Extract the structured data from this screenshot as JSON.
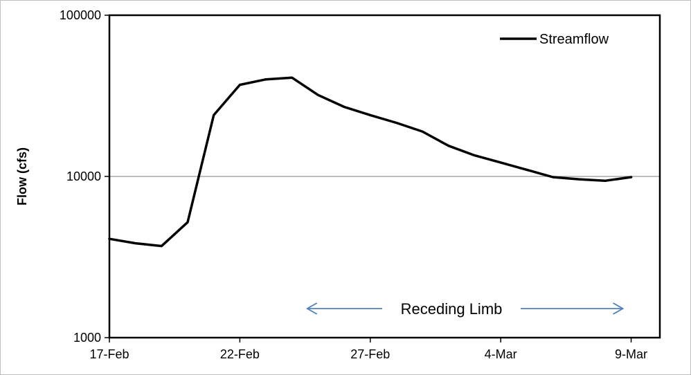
{
  "chart_data": {
    "type": "line",
    "title": "",
    "xlabel": "",
    "ylabel": "Flow (cfs)",
    "yscale": "log",
    "ylim": [
      1000,
      100000
    ],
    "xlim": [
      "17-Feb",
      "9-Mar"
    ],
    "y_ticks": [
      {
        "value": 1000,
        "label": "1000"
      },
      {
        "value": 10000,
        "label": "10000"
      },
      {
        "value": 100000,
        "label": "100000"
      }
    ],
    "x_ticks": [
      {
        "value": "17-Feb",
        "label": "17-Feb"
      },
      {
        "value": "22-Feb",
        "label": "22-Feb"
      },
      {
        "value": "27-Feb",
        "label": "27-Feb"
      },
      {
        "value": "4-Mar",
        "label": "4-Mar"
      },
      {
        "value": "9-Mar",
        "label": "9-Mar"
      }
    ],
    "gridlines": "horizontal",
    "legend_position": "top-right",
    "line_color": "#000000",
    "grid_color": "#969696",
    "annotation_color": "#4F81BD",
    "series": [
      {
        "name": "Streamflow",
        "x": [
          "17-Feb",
          "18-Feb",
          "19-Feb",
          "20-Feb",
          "21-Feb",
          "22-Feb",
          "23-Feb",
          "24-Feb",
          "25-Feb",
          "26-Feb",
          "27-Feb",
          "28-Feb",
          "1-Mar",
          "2-Mar",
          "3-Mar",
          "4-Mar",
          "5-Mar",
          "6-Mar",
          "7-Mar",
          "8-Mar",
          "9-Mar"
        ],
        "y": [
          4100,
          3850,
          3700,
          5200,
          24000,
          37000,
          40000,
          41000,
          32000,
          27000,
          24000,
          21500,
          19000,
          15500,
          13500,
          12200,
          11000,
          9900,
          9600,
          9400,
          9900
        ]
      }
    ],
    "annotations": [
      {
        "text": "Receding Limb",
        "arrow": "double-headed",
        "from": "24-Feb",
        "to": "9-Mar"
      }
    ]
  }
}
